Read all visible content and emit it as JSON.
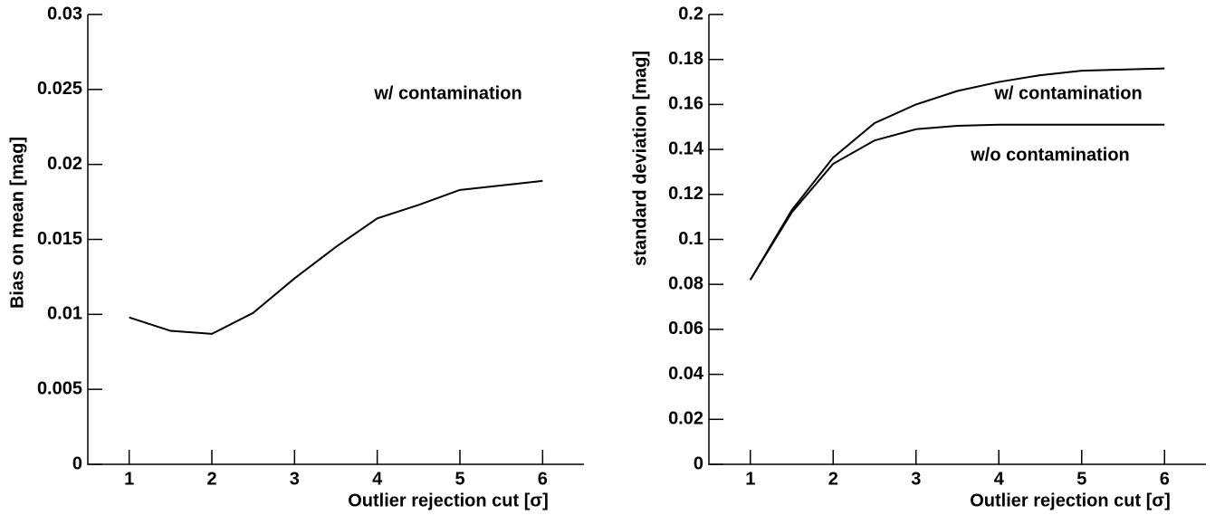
{
  "chart_data": [
    {
      "type": "line",
      "xlabel": "Outlier rejection cut [σ]",
      "ylabel": "Bias on mean [mag]",
      "xlim": [
        0.5,
        6.5
      ],
      "xticks": [
        1,
        2,
        3,
        4,
        5,
        6
      ],
      "ylim": [
        0,
        0.03
      ],
      "yticks": [
        0,
        0.005,
        0.01,
        0.015,
        0.02,
        0.025,
        0.03
      ],
      "x": [
        1,
        1.5,
        2,
        2.5,
        3,
        3.5,
        4,
        4.5,
        5,
        6
      ],
      "series": [
        {
          "name": "w/ contamination",
          "color": "#000000",
          "values": [
            0.0098,
            0.0089,
            0.0087,
            0.0101,
            0.0124,
            0.0145,
            0.0164,
            0.0173,
            0.0183,
            0.0189
          ]
        }
      ]
    },
    {
      "type": "line",
      "xlabel": "Outlier rejection cut [σ]",
      "ylabel": "standard deviation [mag]",
      "xlim": [
        0.5,
        6.5
      ],
      "xticks": [
        1,
        2,
        3,
        4,
        5,
        6
      ],
      "ylim": [
        0,
        0.2
      ],
      "yticks": [
        0,
        0.02,
        0.04,
        0.06,
        0.08,
        0.1,
        0.12,
        0.14,
        0.16,
        0.18,
        0.2
      ],
      "x": [
        1,
        1.5,
        2,
        2.5,
        3,
        3.5,
        4,
        4.5,
        5,
        6
      ],
      "series": [
        {
          "name": "w/ contamination",
          "color": "#000000",
          "values": [
            0.082,
            0.113,
            0.1364,
            0.1517,
            0.16,
            0.166,
            0.17,
            0.173,
            0.175,
            0.176
          ]
        },
        {
          "name": "w/o contamination",
          "color": "#000000",
          "values": [
            0.082,
            0.112,
            0.1336,
            0.144,
            0.149,
            0.1505,
            0.151,
            0.151,
            0.151,
            0.151
          ]
        }
      ]
    }
  ]
}
